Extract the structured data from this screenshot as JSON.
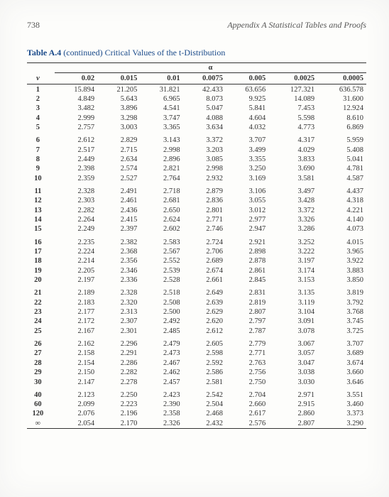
{
  "header": {
    "page_no": "738",
    "appendix": "Appendix A   Statistical Tables and Proofs"
  },
  "title": {
    "label": "Table A.4",
    "cont": "(continued)",
    "desc": "Critical Values of the t-Distribution"
  },
  "alpha_symbol": "α",
  "columns": [
    "v",
    "0.02",
    "0.015",
    "0.01",
    "0.0075",
    "0.005",
    "0.0025",
    "0.0005"
  ],
  "groups": [
    [
      [
        "1",
        "15.894",
        "21.205",
        "31.821",
        "42.433",
        "63.656",
        "127.321",
        "636.578"
      ],
      [
        "2",
        "4.849",
        "5.643",
        "6.965",
        "8.073",
        "9.925",
        "14.089",
        "31.600"
      ],
      [
        "3",
        "3.482",
        "3.896",
        "4.541",
        "5.047",
        "5.841",
        "7.453",
        "12.924"
      ],
      [
        "4",
        "2.999",
        "3.298",
        "3.747",
        "4.088",
        "4.604",
        "5.598",
        "8.610"
      ],
      [
        "5",
        "2.757",
        "3.003",
        "3.365",
        "3.634",
        "4.032",
        "4.773",
        "6.869"
      ]
    ],
    [
      [
        "6",
        "2.612",
        "2.829",
        "3.143",
        "3.372",
        "3.707",
        "4.317",
        "5.959"
      ],
      [
        "7",
        "2.517",
        "2.715",
        "2.998",
        "3.203",
        "3.499",
        "4.029",
        "5.408"
      ],
      [
        "8",
        "2.449",
        "2.634",
        "2.896",
        "3.085",
        "3.355",
        "3.833",
        "5.041"
      ],
      [
        "9",
        "2.398",
        "2.574",
        "2.821",
        "2.998",
        "3.250",
        "3.690",
        "4.781"
      ],
      [
        "10",
        "2.359",
        "2.527",
        "2.764",
        "2.932",
        "3.169",
        "3.581",
        "4.587"
      ]
    ],
    [
      [
        "11",
        "2.328",
        "2.491",
        "2.718",
        "2.879",
        "3.106",
        "3.497",
        "4.437"
      ],
      [
        "12",
        "2.303",
        "2.461",
        "2.681",
        "2.836",
        "3.055",
        "3.428",
        "4.318"
      ],
      [
        "13",
        "2.282",
        "2.436",
        "2.650",
        "2.801",
        "3.012",
        "3.372",
        "4.221"
      ],
      [
        "14",
        "2.264",
        "2.415",
        "2.624",
        "2.771",
        "2.977",
        "3.326",
        "4.140"
      ],
      [
        "15",
        "2.249",
        "2.397",
        "2.602",
        "2.746",
        "2.947",
        "3.286",
        "4.073"
      ]
    ],
    [
      [
        "16",
        "2.235",
        "2.382",
        "2.583",
        "2.724",
        "2.921",
        "3.252",
        "4.015"
      ],
      [
        "17",
        "2.224",
        "2.368",
        "2.567",
        "2.706",
        "2.898",
        "3.222",
        "3.965"
      ],
      [
        "18",
        "2.214",
        "2.356",
        "2.552",
        "2.689",
        "2.878",
        "3.197",
        "3.922"
      ],
      [
        "19",
        "2.205",
        "2.346",
        "2.539",
        "2.674",
        "2.861",
        "3.174",
        "3.883"
      ],
      [
        "20",
        "2.197",
        "2.336",
        "2.528",
        "2.661",
        "2.845",
        "3.153",
        "3.850"
      ]
    ],
    [
      [
        "21",
        "2.189",
        "2.328",
        "2.518",
        "2.649",
        "2.831",
        "3.135",
        "3.819"
      ],
      [
        "22",
        "2.183",
        "2.320",
        "2.508",
        "2.639",
        "2.819",
        "3.119",
        "3.792"
      ],
      [
        "23",
        "2.177",
        "2.313",
        "2.500",
        "2.629",
        "2.807",
        "3.104",
        "3.768"
      ],
      [
        "24",
        "2.172",
        "2.307",
        "2.492",
        "2.620",
        "2.797",
        "3.091",
        "3.745"
      ],
      [
        "25",
        "2.167",
        "2.301",
        "2.485",
        "2.612",
        "2.787",
        "3.078",
        "3.725"
      ]
    ],
    [
      [
        "26",
        "2.162",
        "2.296",
        "2.479",
        "2.605",
        "2.779",
        "3.067",
        "3.707"
      ],
      [
        "27",
        "2.158",
        "2.291",
        "2.473",
        "2.598",
        "2.771",
        "3.057",
        "3.689"
      ],
      [
        "28",
        "2.154",
        "2.286",
        "2.467",
        "2.592",
        "2.763",
        "3.047",
        "3.674"
      ],
      [
        "29",
        "2.150",
        "2.282",
        "2.462",
        "2.586",
        "2.756",
        "3.038",
        "3.660"
      ],
      [
        "30",
        "2.147",
        "2.278",
        "2.457",
        "2.581",
        "2.750",
        "3.030",
        "3.646"
      ]
    ],
    [
      [
        "40",
        "2.123",
        "2.250",
        "2.423",
        "2.542",
        "2.704",
        "2.971",
        "3.551"
      ],
      [
        "60",
        "2.099",
        "2.223",
        "2.390",
        "2.504",
        "2.660",
        "2.915",
        "3.460"
      ],
      [
        "120",
        "2.076",
        "2.196",
        "2.358",
        "2.468",
        "2.617",
        "2.860",
        "3.373"
      ],
      [
        "∞",
        "2.054",
        "2.170",
        "2.326",
        "2.432",
        "2.576",
        "2.807",
        "3.290"
      ]
    ]
  ]
}
